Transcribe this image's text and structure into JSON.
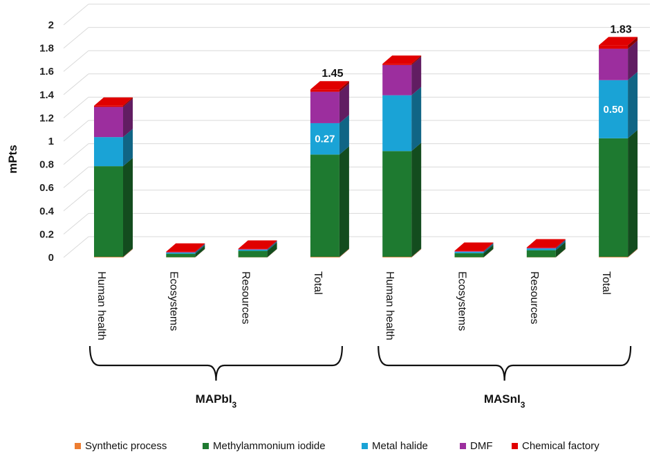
{
  "chart_data": {
    "type": "bar",
    "stacked": true,
    "three_d": true,
    "ylabel": "mPts",
    "xlabel": "",
    "ylim": [
      0,
      2
    ],
    "yticks": [
      "0",
      "0.2",
      "0.4",
      "0.6",
      "0.8",
      "1",
      "1.2",
      "1.4",
      "1.6",
      "1.8",
      "2"
    ],
    "grid": true,
    "legend_position": "bottom",
    "categories": [
      "Human health",
      "Ecosystems",
      "Resources",
      "Total",
      "Human health",
      "Ecosystems",
      "Resources",
      "Total"
    ],
    "groups": [
      {
        "name": "MAPbI",
        "subscript": "3",
        "span": [
          0,
          3
        ]
      },
      {
        "name": "MASnI",
        "subscript": "3",
        "span": [
          4,
          7
        ]
      }
    ],
    "series": [
      {
        "name": "Synthetic process",
        "color": "#ed7d31",
        "values": [
          0.005,
          0.002,
          0.002,
          0.005,
          0.005,
          0.002,
          0.002,
          0.005
        ]
      },
      {
        "name": "Methylammonium iodide",
        "color": "#1e7a30",
        "values": [
          0.78,
          0.03,
          0.055,
          0.88,
          0.91,
          0.035,
          0.06,
          1.02
        ]
      },
      {
        "name": "Metal halide",
        "color": "#1aa3d6",
        "values": [
          0.25,
          0.01,
          0.01,
          0.27,
          0.48,
          0.012,
          0.015,
          0.5
        ]
      },
      {
        "name": "DMF",
        "color": "#9c2e9e",
        "values": [
          0.26,
          0.004,
          0.004,
          0.27,
          0.26,
          0.004,
          0.005,
          0.27
        ]
      },
      {
        "name": "Chemical factory",
        "color": "#e00000",
        "values": [
          0.01,
          0.004,
          0.004,
          0.02,
          0.01,
          0.004,
          0.004,
          0.03
        ]
      }
    ],
    "totals": [
      "",
      "",
      "",
      "1.45",
      "",
      "",
      "",
      "1.83"
    ],
    "bar_annotations": [
      {
        "category_index": 3,
        "series": "Metal halide",
        "text": "0.27"
      },
      {
        "category_index": 7,
        "series": "Metal halide",
        "text": "0.50"
      }
    ]
  }
}
